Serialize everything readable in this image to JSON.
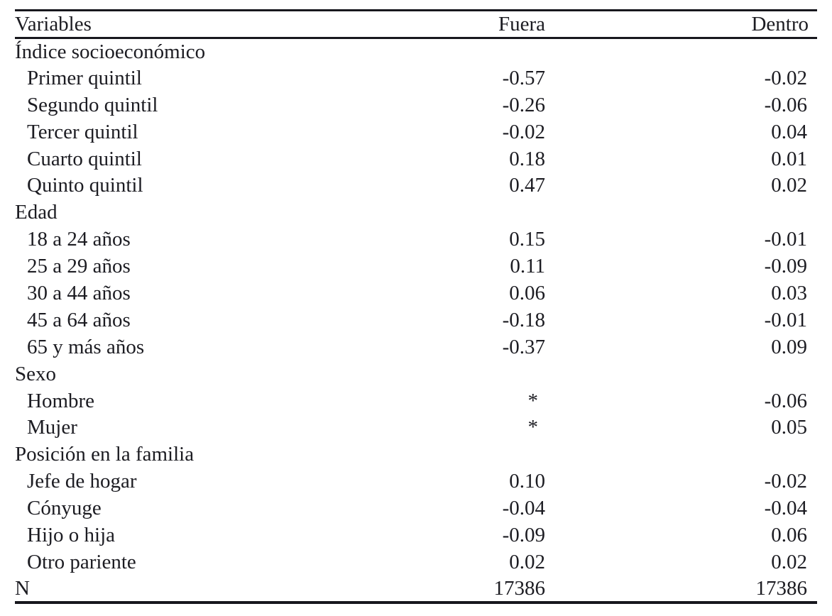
{
  "page": {
    "background": "#ffffff",
    "text_color": "#1c1c22",
    "rule_color": "#17171d"
  },
  "table": {
    "columns": [
      {
        "key": "variables",
        "label": "Variables"
      },
      {
        "key": "fuera",
        "label": "Fuera"
      },
      {
        "key": "dentro",
        "label": "Dentro"
      }
    ],
    "rows": [
      {
        "label": "Índice socioeconómico",
        "type": "group",
        "fuera": "",
        "dentro": ""
      },
      {
        "label": "Primer quintil",
        "type": "item",
        "fuera": "-0.57",
        "dentro": "-0.02"
      },
      {
        "label": "Segundo quintil",
        "type": "item",
        "fuera": "-0.26",
        "dentro": "-0.06"
      },
      {
        "label": "Tercer quintil",
        "type": "item",
        "fuera": "-0.02",
        "dentro": "0.04"
      },
      {
        "label": "Cuarto quintil",
        "type": "item",
        "fuera": "0.18",
        "dentro": "0.01"
      },
      {
        "label": "Quinto quintil",
        "type": "item",
        "fuera": "0.47",
        "dentro": "0.02"
      },
      {
        "label": "Edad",
        "type": "group",
        "fuera": "",
        "dentro": ""
      },
      {
        "label": "18 a 24 años",
        "type": "item",
        "fuera": "0.15",
        "dentro": "-0.01"
      },
      {
        "label": "25 a 29 años",
        "type": "item",
        "fuera": "0.11",
        "dentro": "-0.09"
      },
      {
        "label": "30 a 44 años",
        "type": "item",
        "fuera": "0.06",
        "dentro": "0.03"
      },
      {
        "label": "45 a 64 años",
        "type": "item",
        "fuera": "-0.18",
        "dentro": "-0.01"
      },
      {
        "label": "65 y más años",
        "type": "item",
        "fuera": "-0.37",
        "dentro": "0.09"
      },
      {
        "label": "Sexo",
        "type": "group",
        "fuera": "",
        "dentro": ""
      },
      {
        "label": "Hombre",
        "type": "item",
        "fuera": "*",
        "dentro": "-0.06"
      },
      {
        "label": "Mujer",
        "type": "item",
        "fuera": "*",
        "dentro": "0.05"
      },
      {
        "label": "Posición en la familia",
        "type": "group",
        "fuera": "",
        "dentro": ""
      },
      {
        "label": "Jefe de hogar",
        "type": "item",
        "fuera": "0.10",
        "dentro": "-0.02"
      },
      {
        "label": "Cónyuge",
        "type": "item",
        "fuera": "-0.04",
        "dentro": "-0.04"
      },
      {
        "label": "Hijo o hija",
        "type": "item",
        "fuera": "-0.09",
        "dentro": "0.06"
      },
      {
        "label": "Otro pariente",
        "type": "item",
        "fuera": "0.02",
        "dentro": "0.02"
      },
      {
        "label": "N",
        "type": "total",
        "fuera": "17386",
        "dentro": "17386"
      }
    ]
  },
  "chart_data": {
    "type": "table",
    "title": "",
    "columns": [
      "Variables",
      "Fuera",
      "Dentro"
    ],
    "groups": [
      {
        "name": "Índice socioeconómico",
        "rows": [
          [
            "Primer quintil",
            -0.57,
            -0.02
          ],
          [
            "Segundo quintil",
            -0.26,
            -0.06
          ],
          [
            "Tercer quintil",
            -0.02,
            0.04
          ],
          [
            "Cuarto quintil",
            0.18,
            0.01
          ],
          [
            "Quinto quintil",
            0.47,
            0.02
          ]
        ]
      },
      {
        "name": "Edad",
        "rows": [
          [
            "18 a 24 años",
            0.15,
            -0.01
          ],
          [
            "25 a 29 años",
            0.11,
            -0.09
          ],
          [
            "30 a 44 años",
            0.06,
            0.03
          ],
          [
            "45 a 64 años",
            -0.18,
            -0.01
          ],
          [
            "65 y más años",
            -0.37,
            0.09
          ]
        ]
      },
      {
        "name": "Sexo",
        "rows": [
          [
            "Hombre",
            "*",
            -0.06
          ],
          [
            "Mujer",
            "*",
            0.05
          ]
        ]
      },
      {
        "name": "Posición en la familia",
        "rows": [
          [
            "Jefe de hogar",
            0.1,
            -0.02
          ],
          [
            "Cónyuge",
            -0.04,
            -0.04
          ],
          [
            "Hijo o hija",
            -0.09,
            0.06
          ],
          [
            "Otro pariente",
            0.02,
            0.02
          ]
        ]
      }
    ],
    "footer_row": [
      "N",
      17386,
      17386
    ]
  }
}
